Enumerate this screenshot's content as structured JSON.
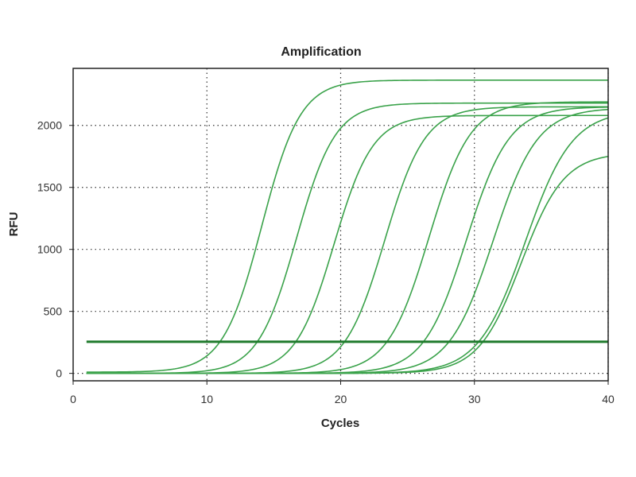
{
  "chart_data": {
    "type": "line",
    "title": "Amplification",
    "xlabel": "Cycles",
    "ylabel": "RFU",
    "xlim": [
      0,
      40
    ],
    "ylim": [
      -60,
      2460
    ],
    "x_ticks": [
      0,
      10,
      20,
      30,
      40
    ],
    "y_ticks": [
      0,
      500,
      1000,
      1500,
      2000
    ],
    "grid": true,
    "colors": {
      "series": "#3aa24a",
      "threshold": "#1f7a2c",
      "frame": "#222222"
    },
    "threshold": {
      "y": 255
    },
    "curves": [
      {
        "baseline": 10,
        "plateau": 2365,
        "midpoint": 14.1,
        "slope": 1.45
      },
      {
        "baseline": 0,
        "plateau": 2180,
        "midpoint": 16.7,
        "slope": 1.45
      },
      {
        "baseline": 0,
        "plateau": 2080,
        "midpoint": 19.5,
        "slope": 1.45
      },
      {
        "baseline": 0,
        "plateau": 2150,
        "midpoint": 23.3,
        "slope": 1.5
      },
      {
        "baseline": 0,
        "plateau": 2190,
        "midpoint": 26.6,
        "slope": 1.55
      },
      {
        "baseline": 0,
        "plateau": 2150,
        "midpoint": 29.4,
        "slope": 1.6
      },
      {
        "baseline": 0,
        "plateau": 2140,
        "midpoint": 31.4,
        "slope": 1.65
      },
      {
        "baseline": 0,
        "plateau": 2120,
        "midpoint": 33.8,
        "slope": 1.75
      },
      {
        "baseline": 0,
        "plateau": 1780,
        "midpoint": 33.5,
        "slope": 1.6
      }
    ],
    "x_start": 1,
    "x_end": 40
  }
}
